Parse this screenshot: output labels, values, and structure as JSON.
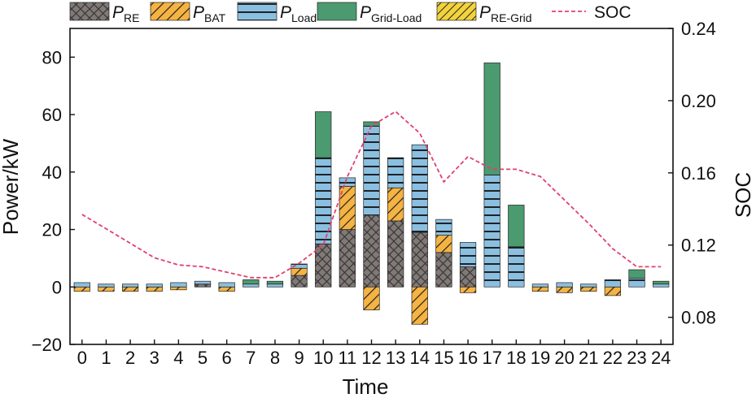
{
  "chart_data": {
    "type": "bar",
    "x": [
      0,
      1,
      2,
      3,
      4,
      5,
      6,
      7,
      8,
      9,
      10,
      11,
      12,
      13,
      14,
      15,
      16,
      17,
      18,
      19,
      20,
      21,
      22,
      23,
      24
    ],
    "xlabel": "Time",
    "ylabel": "Power/kW",
    "y2label": "SOC",
    "ylim": [
      -20,
      90
    ],
    "yticks": [
      -20,
      0,
      20,
      40,
      60,
      80
    ],
    "y2lim": [
      0.065,
      0.24
    ],
    "y2ticks": [
      "0.08",
      "0.12",
      "0.16",
      "0.20",
      "0.24"
    ],
    "stacked": true,
    "legend_position": "top",
    "series": [
      {
        "key": "re",
        "name": "P",
        "sub": "RE",
        "pattern": "cross",
        "color": "#7f7a78",
        "values": [
          0,
          0,
          0,
          0,
          0,
          1,
          0,
          0,
          0,
          4,
          15,
          20,
          25,
          23,
          19,
          12,
          7,
          0,
          0,
          0,
          0,
          0,
          0,
          0,
          0
        ]
      },
      {
        "key": "bat",
        "name": "P",
        "sub": "BAT",
        "pattern": "diag",
        "color": "#f5b342",
        "values": [
          -1.5,
          -1.5,
          -1.5,
          -1.5,
          -1,
          0,
          -1.5,
          0,
          0,
          2.5,
          0,
          15,
          -8,
          11.5,
          -13,
          6,
          -2,
          0,
          0,
          -1.5,
          -2,
          -1.5,
          -3,
          0,
          0
        ]
      },
      {
        "key": "load",
        "name": "P",
        "sub": "Load",
        "pattern": "hlines",
        "color": "#8bbfe0",
        "values": [
          1.5,
          1,
          1,
          1,
          1.5,
          1,
          1.5,
          1,
          1,
          1.5,
          30,
          3,
          31,
          10.5,
          30.5,
          5.5,
          8.5,
          39,
          14,
          1,
          1.5,
          1,
          2.5,
          3,
          1
        ]
      },
      {
        "key": "grid_load",
        "name": "P",
        "sub": "Grid-Load",
        "pattern": "solid",
        "color": "#4c9a6f",
        "values": [
          0,
          0,
          0,
          0,
          0,
          0,
          0,
          1.5,
          1,
          0,
          16,
          0,
          1.5,
          0,
          0,
          0,
          0,
          39,
          14.5,
          0,
          0,
          0,
          0,
          3,
          1
        ]
      },
      {
        "key": "re_grid",
        "name": "P",
        "sub": "RE-Grid",
        "pattern": "fdiag",
        "color": "#f2d33c",
        "values": [
          0,
          0,
          0,
          0,
          0,
          0,
          0,
          0,
          0,
          0,
          0,
          0,
          0,
          0,
          0,
          0,
          0,
          0,
          0,
          0,
          0,
          0,
          0,
          0,
          0
        ]
      },
      {
        "key": "soc",
        "name": "SOC",
        "type": "line",
        "axis": "right",
        "color": "#e2406e",
        "values": [
          0.137,
          0.129,
          0.121,
          0.113,
          0.109,
          0.108,
          0.105,
          0.102,
          0.102,
          0.11,
          0.12,
          0.158,
          0.186,
          0.194,
          0.182,
          0.155,
          0.169,
          0.162,
          0.162,
          0.158,
          0.145,
          0.132,
          0.118,
          0.108,
          0.108
        ]
      }
    ]
  }
}
